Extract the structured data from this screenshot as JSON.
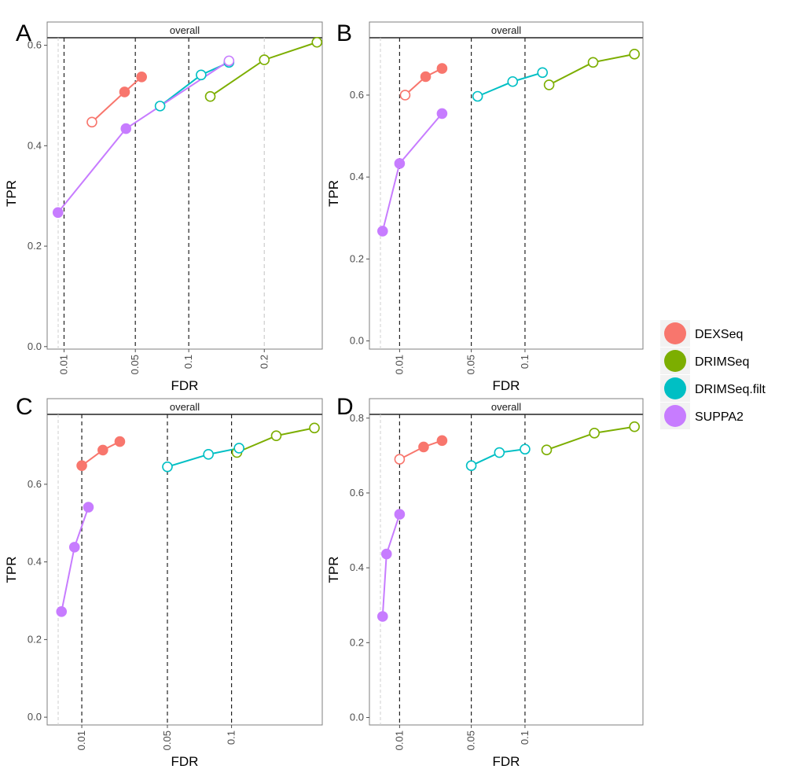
{
  "chart_data": [
    {
      "type": "line",
      "panel": "A",
      "strip": "overall",
      "xlabel": "FDR",
      "ylabel": "TPR",
      "x_scale": "sqrt",
      "xlim": [
        0.005,
        0.3
      ],
      "ylim": [
        -0.005,
        0.615
      ],
      "x_ticks": [
        0.01,
        0.05,
        0.1,
        0.2
      ],
      "x_tick_labels": [
        "0.01",
        "0.05",
        "0.1",
        "0.2"
      ],
      "y_ticks": [
        0,
        0.2,
        0.4,
        0.6
      ],
      "y_tick_labels": [
        "0.0",
        "0.2",
        "0.4",
        "0.6"
      ],
      "vlines": [
        0.01,
        0.05,
        0.1,
        0.2
      ],
      "series": [
        {
          "name": "DEXSeq",
          "color": "#F8766D",
          "x": [
            0.022,
            0.042,
            0.055
          ],
          "y": [
            0.447,
            0.507,
            0.537
          ],
          "filled": [
            false,
            true,
            true
          ]
        },
        {
          "name": "DRIMSeq",
          "color": "#7CAE00",
          "x": [
            0.125,
            0.2,
            0.29
          ],
          "y": [
            0.498,
            0.571,
            0.606
          ],
          "filled": [
            false,
            false,
            false
          ]
        },
        {
          "name": "DRIMSeq.filt",
          "color": "#00BFC4",
          "x": [
            0.071,
            0.114,
            0.149
          ],
          "y": [
            0.479,
            0.541,
            0.566
          ],
          "filled": [
            false,
            false,
            false
          ]
        },
        {
          "name": "SUPPA2",
          "color": "#C77CFF",
          "x": [
            0.008,
            0.043,
            0.149
          ],
          "y": [
            0.267,
            0.434,
            0.569
          ],
          "filled": [
            true,
            true,
            false
          ]
        }
      ]
    },
    {
      "type": "line",
      "panel": "B",
      "strip": "overall",
      "xlabel": "FDR",
      "ylabel": "TPR",
      "x_scale": "sqrt",
      "xlim": [
        0.0023,
        0.27
      ],
      "ylim": [
        -0.02,
        0.74
      ],
      "x_ticks": [
        0.01,
        0.05,
        0.1
      ],
      "x_tick_labels": [
        "0.01",
        "0.05",
        "0.1"
      ],
      "y_ticks": [
        0,
        0.2,
        0.4,
        0.6
      ],
      "y_tick_labels": [
        "0.0",
        "0.2",
        "0.4",
        "0.6"
      ],
      "vlines": [
        0.01,
        0.05,
        0.1
      ],
      "series": [
        {
          "name": "DEXSeq",
          "color": "#F8766D",
          "x": [
            0.012,
            0.021,
            0.03
          ],
          "y": [
            0.6,
            0.645,
            0.665
          ],
          "filled": [
            false,
            true,
            true
          ]
        },
        {
          "name": "DRIMSeq",
          "color": "#7CAE00",
          "x": [
            0.128,
            0.188,
            0.255
          ],
          "y": [
            0.625,
            0.68,
            0.7
          ],
          "filled": [
            false,
            false,
            false
          ]
        },
        {
          "name": "DRIMSeq.filt",
          "color": "#00BFC4",
          "x": [
            0.055,
            0.087,
            0.12
          ],
          "y": [
            0.597,
            0.633,
            0.655
          ],
          "filled": [
            false,
            false,
            false
          ]
        },
        {
          "name": "SUPPA2",
          "color": "#C77CFF",
          "x": [
            0.005,
            0.01,
            0.03
          ],
          "y": [
            0.268,
            0.433,
            0.555
          ],
          "filled": [
            true,
            true,
            true
          ]
        }
      ]
    },
    {
      "type": "line",
      "panel": "C",
      "strip": "overall",
      "xlabel": "FDR",
      "ylabel": "TPR",
      "x_scale": "sqrt",
      "xlim": [
        0.0025,
        0.2
      ],
      "ylim": [
        -0.02,
        0.78
      ],
      "x_ticks": [
        0.01,
        0.05,
        0.1
      ],
      "x_tick_labels": [
        "0.01",
        "0.05",
        "0.1"
      ],
      "y_ticks": [
        0,
        0.2,
        0.4,
        0.6
      ],
      "y_tick_labels": [
        "0.0",
        "0.2",
        "0.4",
        "0.6"
      ],
      "vlines": [
        0.01,
        0.05,
        0.1
      ],
      "series": [
        {
          "name": "DEXSeq",
          "color": "#F8766D",
          "x": [
            0.01,
            0.017,
            0.024
          ],
          "y": [
            0.648,
            0.688,
            0.71
          ],
          "filled": [
            true,
            true,
            true
          ]
        },
        {
          "name": "DRIMSeq",
          "color": "#7CAE00",
          "x": [
            0.105,
            0.145,
            0.19
          ],
          "y": [
            0.682,
            0.725,
            0.745
          ],
          "filled": [
            false,
            false,
            false
          ]
        },
        {
          "name": "DRIMSeq.filt",
          "color": "#00BFC4",
          "x": [
            0.05,
            0.08,
            0.107
          ],
          "y": [
            0.645,
            0.677,
            0.693
          ],
          "filled": [
            false,
            false,
            false
          ]
        },
        {
          "name": "SUPPA2",
          "color": "#C77CFF",
          "x": [
            0.005,
            0.008,
            0.012
          ],
          "y": [
            0.272,
            0.438,
            0.541
          ],
          "filled": [
            true,
            true,
            true
          ]
        }
      ]
    },
    {
      "type": "line",
      "panel": "D",
      "strip": "overall",
      "xlabel": "FDR",
      "ylabel": "TPR",
      "x_scale": "sqrt",
      "xlim": [
        0.0023,
        0.27
      ],
      "ylim": [
        -0.02,
        0.81
      ],
      "x_ticks": [
        0.01,
        0.05,
        0.1
      ],
      "x_tick_labels": [
        "0.01",
        "0.05",
        "0.1"
      ],
      "y_ticks": [
        0,
        0.2,
        0.4,
        0.6,
        0.8
      ],
      "y_tick_labels": [
        "0.0",
        "0.2",
        "0.4",
        "0.6",
        "0.8"
      ],
      "vlines": [
        0.01,
        0.05,
        0.1
      ],
      "series": [
        {
          "name": "DEXSeq",
          "color": "#F8766D",
          "x": [
            0.01,
            0.02,
            0.03
          ],
          "y": [
            0.69,
            0.723,
            0.74
          ],
          "filled": [
            false,
            true,
            true
          ]
        },
        {
          "name": "DRIMSeq",
          "color": "#7CAE00",
          "x": [
            0.125,
            0.19,
            0.255
          ],
          "y": [
            0.715,
            0.76,
            0.777
          ],
          "filled": [
            false,
            false,
            false
          ]
        },
        {
          "name": "DRIMSeq.filt",
          "color": "#00BFC4",
          "x": [
            0.05,
            0.074,
            0.1
          ],
          "y": [
            0.673,
            0.708,
            0.717
          ],
          "filled": [
            false,
            false,
            false
          ]
        },
        {
          "name": "SUPPA2",
          "color": "#C77CFF",
          "x": [
            0.005,
            0.006,
            0.01
          ],
          "y": [
            0.27,
            0.437,
            0.543
          ],
          "filled": [
            true,
            true,
            true
          ]
        }
      ]
    }
  ],
  "legend": {
    "placement": "right",
    "items": [
      {
        "label": "DEXSeq",
        "color": "#F8766D"
      },
      {
        "label": "DRIMSeq",
        "color": "#7CAE00"
      },
      {
        "label": "DRIMSeq.filt",
        "color": "#00BFC4"
      },
      {
        "label": "SUPPA2",
        "color": "#C77CFF"
      }
    ]
  }
}
